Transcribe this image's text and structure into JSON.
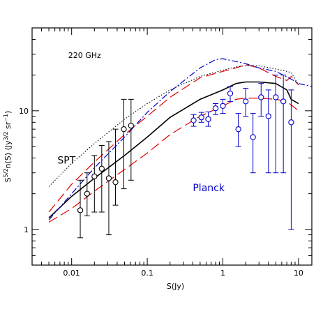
{
  "chart_data": {
    "type": "scatter",
    "x_scale": "log",
    "y_scale": "log",
    "xlim": [
      0.003,
      15
    ],
    "ylim": [
      0.5,
      50
    ],
    "xlabel": "S(Jy)",
    "ylabel": "S^{5/2}n(S) (Jy^{3/2} sr^{-1})",
    "ylabel_parts": {
      "prefix": "S",
      "exp1": "5/2",
      "mid": "n(S) (Jy",
      "exp2": "3/2",
      "mid2": " sr",
      "exp3": "−1",
      "suffix": ")"
    },
    "x_tick_labels": [
      {
        "value": 0.01,
        "label": "0.01"
      },
      {
        "value": 0.1,
        "label": "0.1"
      },
      {
        "value": 1,
        "label": "1"
      },
      {
        "value": 10,
        "label": "10"
      }
    ],
    "y_tick_labels": [
      {
        "value": 1,
        "label": "1"
      },
      {
        "value": 10,
        "label": "10"
      }
    ],
    "annotations": [
      {
        "text": "220 GHz",
        "x": 0.009,
        "y": 28,
        "color": "#000000"
      },
      {
        "text": "SPT",
        "x": 0.0065,
        "y": 3.6,
        "color": "#000000"
      },
      {
        "text": "Planck",
        "x": 0.4,
        "y": 2.1,
        "color": "#0000cc"
      }
    ],
    "point_series": [
      {
        "name": "SPT",
        "color": "#000000",
        "points": [
          {
            "x": 0.013,
            "y": 1.45,
            "lo": 0.85,
            "hi": 2.6
          },
          {
            "x": 0.016,
            "y": 2.0,
            "lo": 1.3,
            "hi": 3.0
          },
          {
            "x": 0.02,
            "y": 2.8,
            "lo": 1.4,
            "hi": 4.2
          },
          {
            "x": 0.025,
            "y": 3.25,
            "lo": 1.4,
            "hi": 5.1
          },
          {
            "x": 0.031,
            "y": 2.7,
            "lo": 0.9,
            "hi": 5.5
          },
          {
            "x": 0.038,
            "y": 2.5,
            "lo": 1.6,
            "hi": 7.0
          },
          {
            "x": 0.049,
            "y": 7.0,
            "lo": 2.2,
            "hi": 12.5
          },
          {
            "x": 0.061,
            "y": 7.5,
            "lo": 2.6,
            "hi": 12.5
          }
        ]
      },
      {
        "name": "Planck",
        "color": "#0000cc",
        "points": [
          {
            "x": 0.41,
            "y": 8.3,
            "lo": 7.4,
            "hi": 9.3
          },
          {
            "x": 0.52,
            "y": 8.8,
            "lo": 8.0,
            "hi": 9.7
          },
          {
            "x": 0.64,
            "y": 8.5,
            "lo": 7.4,
            "hi": 9.8
          },
          {
            "x": 0.8,
            "y": 10.5,
            "lo": 9.3,
            "hi": 11.5
          },
          {
            "x": 1.0,
            "y": 11.0,
            "lo": 9.5,
            "hi": 12.5
          },
          {
            "x": 1.25,
            "y": 14.0,
            "lo": 12.0,
            "hi": 16.0
          },
          {
            "x": 1.6,
            "y": 7.0,
            "lo": 5.0,
            "hi": 9.5
          },
          {
            "x": 2.0,
            "y": 12.0,
            "lo": 9.0,
            "hi": 15.5
          },
          {
            "x": 2.5,
            "y": 6.0,
            "lo": 3.0,
            "hi": 9.5
          },
          {
            "x": 3.2,
            "y": 13.0,
            "lo": 9.0,
            "hi": 17.0
          },
          {
            "x": 4.0,
            "y": 9.0,
            "lo": 3.0,
            "hi": 15.0
          },
          {
            "x": 5.0,
            "y": 13.0,
            "lo": 3.0,
            "hi": 20.0
          },
          {
            "x": 6.3,
            "y": 12.0,
            "lo": 3.0,
            "hi": 20.0
          },
          {
            "x": 8.0,
            "y": 8.0,
            "lo": 1.0,
            "hi": 15.0
          }
        ]
      }
    ],
    "line_series": [
      {
        "style": "solid",
        "color": "#000000",
        "width": 1.6,
        "x": [
          0.005,
          0.01,
          0.02,
          0.05,
          0.1,
          0.2,
          0.5,
          1.0,
          1.5,
          2.0,
          3.0,
          5.0,
          7.0,
          8.0,
          10.0
        ],
        "y": [
          1.25,
          1.9,
          2.7,
          4.2,
          6.0,
          8.8,
          12.5,
          15.0,
          17.0,
          17.5,
          17.5,
          17.0,
          15.0,
          12.5,
          11.5
        ]
      },
      {
        "style": "dashed",
        "color": "#e00000",
        "width": 1.2,
        "x": [
          0.005,
          0.01,
          0.02,
          0.05,
          0.1,
          0.2,
          0.5,
          1.0,
          1.5,
          2.0,
          3.0,
          5.0,
          7.0,
          8.0,
          10.0
        ],
        "y": [
          1.15,
          1.5,
          2.1,
          3.2,
          4.4,
          6.3,
          9.0,
          11.0,
          12.5,
          12.8,
          12.8,
          12.5,
          12.0,
          11.2,
          10.0
        ]
      },
      {
        "style": "dashed",
        "color": "#e00000",
        "width": 1.2,
        "x": [
          0.005,
          0.01,
          0.02,
          0.05,
          0.1,
          0.2,
          0.5,
          1.0,
          1.5,
          2.0,
          3.0,
          5.0,
          7.0,
          8.0,
          10.0
        ],
        "y": [
          1.4,
          2.4,
          3.7,
          6.3,
          9.0,
          13.0,
          19.0,
          21.5,
          23.0,
          24.5,
          23.0,
          19.5,
          18.0,
          19.5,
          16.5
        ]
      },
      {
        "style": "dashdot",
        "color": "#0000cc",
        "width": 1.2,
        "x": [
          0.005,
          0.01,
          0.02,
          0.05,
          0.1,
          0.2,
          0.5,
          0.8,
          1.0,
          1.5,
          2.0,
          3.0,
          5.0,
          8.0,
          10.0,
          15.0
        ],
        "y": [
          1.2,
          2.0,
          3.3,
          6.0,
          9.7,
          14.5,
          23.0,
          27.0,
          27.5,
          26.0,
          25.0,
          23.0,
          21.5,
          18.5,
          17.0,
          16.0
        ]
      },
      {
        "style": "dotted",
        "color": "#000000",
        "width": 1.1,
        "x": [
          0.005,
          0.01,
          0.02,
          0.05,
          0.1,
          0.2,
          0.5,
          1.0,
          1.5,
          2.0,
          3.0,
          5.0,
          7.0,
          8.0,
          10.0
        ],
        "y": [
          2.3,
          3.6,
          5.3,
          8.5,
          11.5,
          15.0,
          19.5,
          22.0,
          23.5,
          24.0,
          24.0,
          22.5,
          21.5,
          21.0,
          16.5
        ]
      }
    ]
  }
}
